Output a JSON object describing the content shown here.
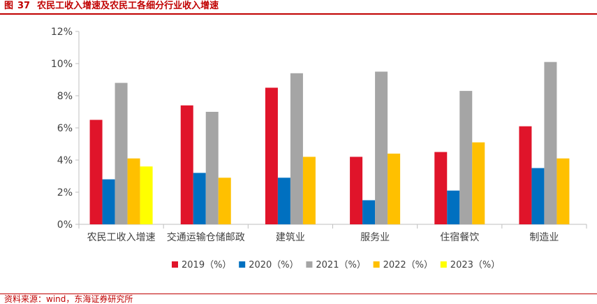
{
  "figure": {
    "label": "图",
    "number": "37",
    "title": "农民工收入增速及农民工各细分行业收入增速",
    "source": "资料来源：wind，东海证券研究所"
  },
  "chart_data": {
    "type": "bar",
    "title": "",
    "xlabel": "",
    "ylabel": "",
    "categories": [
      "农民工收入增速",
      "交通运输仓储邮政",
      "建筑业",
      "服务业",
      "住宿餐饮",
      "制造业"
    ],
    "yticks": [
      "0%",
      "2%",
      "4%",
      "6%",
      "8%",
      "10%",
      "12%"
    ],
    "ylim": [
      0,
      12
    ],
    "y_unit": "%",
    "grid": false,
    "legend_position": "bottom",
    "series": [
      {
        "name": "2019（%）",
        "color": "#e0142a",
        "values": [
          6.5,
          7.4,
          8.5,
          4.2,
          4.5,
          6.1
        ]
      },
      {
        "name": "2020（%）",
        "color": "#0070c0",
        "values": [
          2.8,
          3.2,
          2.9,
          1.5,
          2.1,
          3.5
        ]
      },
      {
        "name": "2021（%）",
        "color": "#a5a5a5",
        "values": [
          8.8,
          7.0,
          9.4,
          9.5,
          8.3,
          10.1
        ]
      },
      {
        "name": "2022（%）",
        "color": "#ffc000",
        "values": [
          4.1,
          2.9,
          4.2,
          4.4,
          5.1,
          4.1
        ]
      },
      {
        "name": "2023（%）",
        "color": "#ffff00",
        "values": [
          3.6,
          null,
          null,
          null,
          null,
          null
        ]
      }
    ]
  }
}
